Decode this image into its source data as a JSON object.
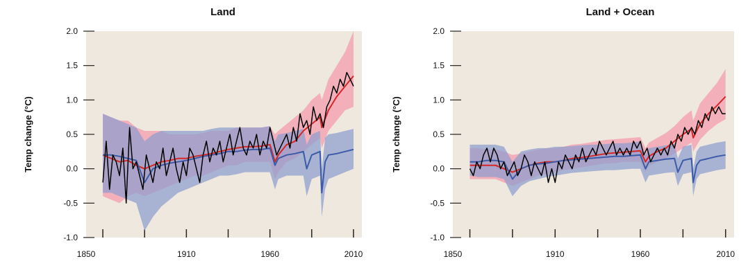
{
  "chart_data": [
    {
      "type": "line",
      "title": "Land",
      "ylabel": "Temp change (°C)",
      "xlabel": "",
      "xlim": [
        1850,
        2015
      ],
      "ylim": [
        -1.0,
        2.0
      ],
      "xticks": [
        1850,
        1910,
        1960,
        2010
      ],
      "yticks": [
        "2.0",
        "1.5",
        "1.0",
        "0.5",
        "0.0",
        "-0.5",
        "-1.0"
      ],
      "colors": {
        "background": "#efe8de",
        "observations": "#000000",
        "all_forcings": "#d62728",
        "all_forcings_band": "#f4a6b4",
        "natural": "#3b5aa8",
        "natural_band": "#8a9ccf"
      },
      "series": [
        {
          "x": [
            1860,
            1865,
            1870,
            1875,
            1880,
            1885,
            1890,
            1895,
            1900,
            1905,
            1910,
            1915,
            1920,
            1925,
            1930,
            1935,
            1940,
            1945,
            1950,
            1955,
            1960,
            1963,
            1965,
            1970,
            1975,
            1980,
            1985,
            1990,
            1991,
            1995,
            2000,
            2005,
            2010
          ],
          "values": [
            0.2,
            0.15,
            0.1,
            0.12,
            0.05,
            0.0,
            0.05,
            0.1,
            0.12,
            0.15,
            0.15,
            0.18,
            0.2,
            0.22,
            0.25,
            0.28,
            0.3,
            0.32,
            0.32,
            0.33,
            0.35,
            0.1,
            0.2,
            0.35,
            0.4,
            0.55,
            0.65,
            0.75,
            0.6,
            0.85,
            1.05,
            1.2,
            1.35
          ],
          "lower": [
            -0.4,
            -0.45,
            -0.5,
            -0.4,
            -0.35,
            -0.4,
            -0.35,
            -0.3,
            -0.25,
            -0.2,
            -0.15,
            -0.1,
            -0.1,
            -0.05,
            0.0,
            0.05,
            0.05,
            0.1,
            0.1,
            0.1,
            0.1,
            -0.15,
            -0.05,
            0.1,
            0.15,
            0.25,
            0.35,
            0.45,
            0.3,
            0.55,
            0.7,
            0.85,
            0.9
          ],
          "upper": [
            0.8,
            0.75,
            0.7,
            0.7,
            0.6,
            0.55,
            0.55,
            0.55,
            0.5,
            0.5,
            0.5,
            0.5,
            0.52,
            0.55,
            0.55,
            0.55,
            0.6,
            0.6,
            0.6,
            0.6,
            0.62,
            0.5,
            0.55,
            0.65,
            0.75,
            0.85,
            1.0,
            1.1,
            1.0,
            1.3,
            1.5,
            1.7,
            2.0
          ]
        },
        {
          "x": [
            1860,
            1865,
            1870,
            1875,
            1880,
            1885,
            1890,
            1895,
            1900,
            1905,
            1910,
            1915,
            1920,
            1925,
            1930,
            1935,
            1940,
            1945,
            1950,
            1955,
            1960,
            1963,
            1965,
            1970,
            1975,
            1980,
            1982,
            1985,
            1990,
            1991,
            1993,
            1995,
            2000,
            2005,
            2010
          ],
          "values": [
            0.2,
            0.2,
            0.18,
            0.15,
            0.12,
            -0.2,
            0.0,
            0.05,
            0.08,
            0.1,
            0.12,
            0.15,
            0.18,
            0.2,
            0.22,
            0.25,
            0.25,
            0.27,
            0.28,
            0.28,
            0.3,
            0.05,
            0.15,
            0.2,
            0.22,
            0.25,
            0.0,
            0.2,
            0.25,
            -0.35,
            0.1,
            0.2,
            0.22,
            0.25,
            0.28
          ],
          "lower": [
            -0.35,
            -0.35,
            -0.4,
            -0.45,
            -0.5,
            -0.9,
            -0.7,
            -0.55,
            -0.45,
            -0.35,
            -0.3,
            -0.25,
            -0.2,
            -0.15,
            -0.1,
            -0.1,
            -0.08,
            -0.05,
            -0.05,
            -0.05,
            -0.05,
            -0.3,
            -0.15,
            -0.1,
            -0.1,
            -0.1,
            -0.4,
            -0.15,
            -0.1,
            -0.7,
            -0.3,
            -0.15,
            -0.1,
            -0.05,
            0.0
          ],
          "upper": [
            0.8,
            0.75,
            0.7,
            0.65,
            0.6,
            0.4,
            0.5,
            0.55,
            0.55,
            0.55,
            0.55,
            0.55,
            0.55,
            0.58,
            0.6,
            0.6,
            0.6,
            0.6,
            0.6,
            0.6,
            0.62,
            0.4,
            0.5,
            0.52,
            0.55,
            0.58,
            0.35,
            0.5,
            0.55,
            0.0,
            0.45,
            0.5,
            0.52,
            0.55,
            0.58
          ]
        },
        {
          "x": [
            1860,
            1862,
            1864,
            1866,
            1868,
            1870,
            1872,
            1874,
            1876,
            1878,
            1880,
            1882,
            1884,
            1886,
            1888,
            1890,
            1892,
            1894,
            1896,
            1898,
            1900,
            1902,
            1904,
            1906,
            1908,
            1910,
            1912,
            1914,
            1916,
            1918,
            1920,
            1922,
            1924,
            1926,
            1928,
            1930,
            1932,
            1934,
            1936,
            1938,
            1940,
            1942,
            1944,
            1946,
            1948,
            1950,
            1952,
            1954,
            1956,
            1958,
            1960,
            1962,
            1964,
            1966,
            1968,
            1970,
            1972,
            1974,
            1976,
            1978,
            1980,
            1982,
            1984,
            1986,
            1988,
            1990,
            1992,
            1994,
            1996,
            1998,
            2000,
            2002,
            2004,
            2006,
            2008,
            2010
          ],
          "values": [
            -0.2,
            0.4,
            -0.3,
            0.2,
            0.1,
            -0.1,
            0.3,
            -0.5,
            0.6,
            0.0,
            0.1,
            -0.1,
            -0.3,
            0.2,
            0.0,
            -0.2,
            0.1,
            0.0,
            0.3,
            -0.1,
            0.1,
            0.3,
            0.0,
            -0.2,
            0.1,
            -0.1,
            0.3,
            0.2,
            0.0,
            -0.2,
            0.2,
            0.4,
            0.1,
            0.3,
            0.2,
            0.4,
            0.1,
            0.3,
            0.5,
            0.2,
            0.4,
            0.6,
            0.3,
            0.2,
            0.4,
            0.3,
            0.5,
            0.2,
            0.4,
            0.3,
            0.6,
            0.4,
            0.2,
            0.3,
            0.4,
            0.5,
            0.3,
            0.6,
            0.4,
            0.8,
            0.6,
            0.7,
            0.5,
            0.9,
            0.7,
            0.8,
            0.6,
            0.9,
            1.0,
            1.2,
            1.1,
            1.3,
            1.2,
            1.4,
            1.3,
            1.2
          ]
        }
      ]
    },
    {
      "type": "line",
      "title": "Land + Ocean",
      "ylabel": "Temp change (°C)",
      "xlabel": "",
      "xlim": [
        1850,
        2015
      ],
      "ylim": [
        -1.0,
        2.0
      ],
      "xticks": [
        1850,
        1910,
        1960,
        2010
      ],
      "yticks": [
        "2.0",
        "1.5",
        "1.0",
        "0.5",
        "0.0",
        "-0.5",
        "-1.0"
      ],
      "colors": {
        "background": "#efe8de",
        "observations": "#000000",
        "all_forcings": "#d62728",
        "all_forcings_band": "#f4a6b4",
        "natural": "#3b5aa8",
        "natural_band": "#8a9ccf"
      },
      "series": [
        {
          "x": [
            1860,
            1865,
            1870,
            1875,
            1880,
            1885,
            1890,
            1895,
            1900,
            1905,
            1910,
            1915,
            1920,
            1925,
            1930,
            1935,
            1940,
            1945,
            1950,
            1955,
            1960,
            1963,
            1965,
            1970,
            1975,
            1980,
            1985,
            1990,
            1991,
            1995,
            2000,
            2005,
            2010
          ],
          "values": [
            0.05,
            0.05,
            0.05,
            0.05,
            0.0,
            -0.05,
            0.0,
            0.05,
            0.08,
            0.1,
            0.1,
            0.12,
            0.15,
            0.16,
            0.18,
            0.2,
            0.22,
            0.23,
            0.24,
            0.25,
            0.26,
            0.1,
            0.18,
            0.25,
            0.3,
            0.4,
            0.5,
            0.58,
            0.45,
            0.65,
            0.8,
            0.92,
            1.05
          ],
          "lower": [
            -0.15,
            -0.15,
            -0.15,
            -0.15,
            -0.2,
            -0.25,
            -0.2,
            -0.15,
            -0.1,
            -0.08,
            -0.05,
            -0.02,
            0.0,
            0.02,
            0.04,
            0.06,
            0.08,
            0.08,
            0.1,
            0.1,
            0.1,
            -0.05,
            0.04,
            0.1,
            0.15,
            0.22,
            0.3,
            0.38,
            0.25,
            0.42,
            0.55,
            0.65,
            0.72
          ],
          "upper": [
            0.3,
            0.3,
            0.28,
            0.28,
            0.25,
            0.2,
            0.22,
            0.25,
            0.28,
            0.3,
            0.3,
            0.32,
            0.35,
            0.36,
            0.38,
            0.4,
            0.42,
            0.43,
            0.44,
            0.45,
            0.46,
            0.3,
            0.38,
            0.45,
            0.52,
            0.62,
            0.75,
            0.85,
            0.7,
            0.95,
            1.1,
            1.25,
            1.45
          ]
        },
        {
          "x": [
            1860,
            1865,
            1870,
            1875,
            1880,
            1885,
            1890,
            1895,
            1900,
            1905,
            1910,
            1915,
            1920,
            1925,
            1930,
            1935,
            1940,
            1945,
            1950,
            1955,
            1960,
            1963,
            1965,
            1970,
            1975,
            1980,
            1982,
            1985,
            1990,
            1991,
            1993,
            1995,
            2000,
            2005,
            2010
          ],
          "values": [
            0.1,
            0.1,
            0.12,
            0.12,
            0.1,
            -0.15,
            0.0,
            0.05,
            0.07,
            0.08,
            0.1,
            0.12,
            0.13,
            0.14,
            0.15,
            0.16,
            0.17,
            0.18,
            0.18,
            0.19,
            0.2,
            0.0,
            0.1,
            0.12,
            0.14,
            0.15,
            -0.05,
            0.12,
            0.15,
            -0.2,
            0.05,
            0.12,
            0.15,
            0.18,
            0.2
          ],
          "lower": [
            -0.1,
            -0.12,
            -0.12,
            -0.12,
            -0.15,
            -0.4,
            -0.25,
            -0.18,
            -0.15,
            -0.12,
            -0.1,
            -0.08,
            -0.06,
            -0.05,
            -0.04,
            -0.03,
            -0.02,
            -0.02,
            -0.01,
            0.0,
            0.0,
            -0.2,
            -0.1,
            -0.08,
            -0.06,
            -0.05,
            -0.25,
            -0.08,
            -0.05,
            -0.4,
            -0.15,
            -0.08,
            -0.05,
            -0.02,
            0.0
          ],
          "upper": [
            0.35,
            0.35,
            0.35,
            0.35,
            0.32,
            0.1,
            0.25,
            0.28,
            0.3,
            0.3,
            0.32,
            0.32,
            0.33,
            0.34,
            0.35,
            0.35,
            0.36,
            0.37,
            0.37,
            0.38,
            0.4,
            0.2,
            0.3,
            0.32,
            0.34,
            0.36,
            0.15,
            0.32,
            0.35,
            0.0,
            0.25,
            0.32,
            0.35,
            0.38,
            0.4
          ]
        },
        {
          "x": [
            1860,
            1862,
            1864,
            1866,
            1868,
            1870,
            1872,
            1874,
            1876,
            1878,
            1880,
            1882,
            1884,
            1886,
            1888,
            1890,
            1892,
            1894,
            1896,
            1898,
            1900,
            1902,
            1904,
            1906,
            1908,
            1910,
            1912,
            1914,
            1916,
            1918,
            1920,
            1922,
            1924,
            1926,
            1928,
            1930,
            1932,
            1934,
            1936,
            1938,
            1940,
            1942,
            1944,
            1946,
            1948,
            1950,
            1952,
            1954,
            1956,
            1958,
            1960,
            1962,
            1964,
            1966,
            1968,
            1970,
            1972,
            1974,
            1976,
            1978,
            1980,
            1982,
            1984,
            1986,
            1988,
            1990,
            1992,
            1994,
            1996,
            1998,
            2000,
            2002,
            2004,
            2006,
            2008,
            2010
          ],
          "values": [
            0.0,
            -0.1,
            0.1,
            0.0,
            0.2,
            0.3,
            0.1,
            0.3,
            0.2,
            0.0,
            0.1,
            -0.1,
            0.0,
            0.1,
            -0.1,
            0.0,
            0.2,
            0.1,
            -0.1,
            0.1,
            0.0,
            -0.1,
            0.1,
            -0.2,
            0.0,
            -0.2,
            0.1,
            0.0,
            0.2,
            0.1,
            0.0,
            0.2,
            0.1,
            0.3,
            0.1,
            0.2,
            0.3,
            0.2,
            0.4,
            0.3,
            0.2,
            0.3,
            0.4,
            0.2,
            0.3,
            0.2,
            0.3,
            0.2,
            0.4,
            0.3,
            0.4,
            0.2,
            0.3,
            0.1,
            0.2,
            0.3,
            0.2,
            0.3,
            0.2,
            0.4,
            0.3,
            0.5,
            0.4,
            0.6,
            0.5,
            0.6,
            0.5,
            0.7,
            0.6,
            0.8,
            0.7,
            0.9,
            0.8,
            0.9,
            0.8,
            0.8
          ]
        }
      ]
    }
  ]
}
